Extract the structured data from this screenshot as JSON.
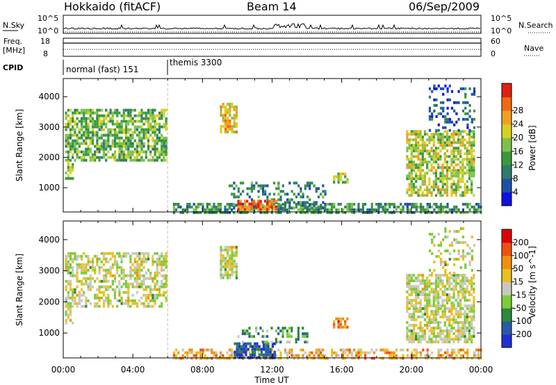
{
  "header": {
    "station": "Hokkaido (fitACF)",
    "beam": "Beam 14",
    "date": "06/Sep/2009"
  },
  "top_panels": {
    "nsky_label": "N.Sky",
    "nsky_ticks": [
      "10^5",
      "10^0"
    ],
    "nsearch_label": "N.Search",
    "freq_label": "Freq.",
    "freq_unit": "[MHz]",
    "freq_ticks": [
      "18",
      "8"
    ],
    "nave_ticks": [
      "60",
      "0"
    ],
    "nave_label": "Nave",
    "cpid_label": "CPID",
    "cpid_segments": [
      {
        "label": "normal (fast) 151",
        "start_hour": 0
      },
      {
        "label": "themis 3300",
        "start_hour": 6
      }
    ]
  },
  "colors": {
    "power_scale": [
      "#1010e0",
      "#1d4fa8",
      "#2f7a6a",
      "#3a9a3a",
      "#7cc24a",
      "#d8d020",
      "#f0a020",
      "#f06a10",
      "#e02010"
    ],
    "velocity_scale": [
      "#1f2fd8",
      "#2a5aa8",
      "#2c8a3a",
      "#7ccc3a",
      "#c8c8c0",
      "#e8c020",
      "#f09010",
      "#f05010",
      "#e00000"
    ]
  },
  "chart_data": [
    {
      "type": "heatmap",
      "name": "power",
      "title": "",
      "xlabel": "Time UT",
      "ylabel": "Slant Range [km]",
      "xlim": [
        0,
        24
      ],
      "ylim": [
        200,
        4600
      ],
      "x_ticks": [
        "00:00",
        "04:00",
        "08:00",
        "12:00",
        "16:00",
        "20:00",
        "00:00"
      ],
      "y_ticks": [
        1000,
        2000,
        3000,
        4000
      ],
      "colorbar": {
        "label": "Power [dB]",
        "range": [
          0,
          32
        ],
        "ticks": [
          "4",
          "8",
          "12",
          "16",
          "20",
          "24",
          "28"
        ]
      },
      "regions": [
        {
          "t0": 0.1,
          "t1": 5.9,
          "r0": 1900,
          "r1": 3600,
          "level": 0.45,
          "density": 0.7
        },
        {
          "t0": 0.1,
          "t1": 0.6,
          "r0": 1300,
          "r1": 1900,
          "level": 0.5,
          "density": 0.5
        },
        {
          "t0": 9.0,
          "t1": 9.9,
          "r0": 2800,
          "r1": 3800,
          "level": 0.65,
          "density": 0.8
        },
        {
          "t0": 6.3,
          "t1": 24.0,
          "r0": 200,
          "r1": 500,
          "level": 0.35,
          "density": 0.6
        },
        {
          "t0": 9.5,
          "t1": 15.0,
          "r0": 300,
          "r1": 1200,
          "level": 0.3,
          "density": 0.35
        },
        {
          "t0": 10.0,
          "t1": 12.2,
          "r0": 250,
          "r1": 600,
          "level": 0.85,
          "density": 0.8
        },
        {
          "t0": 15.5,
          "t1": 16.3,
          "r0": 1200,
          "r1": 1500,
          "level": 0.5,
          "density": 0.6
        },
        {
          "t0": 19.7,
          "t1": 23.6,
          "r0": 700,
          "r1": 2900,
          "level": 0.55,
          "density": 0.65
        },
        {
          "t0": 21.0,
          "t1": 23.6,
          "r0": 2900,
          "r1": 4400,
          "level": 0.2,
          "density": 0.25
        }
      ]
    },
    {
      "type": "heatmap",
      "name": "velocity",
      "title": "",
      "xlabel": "Time UT",
      "ylabel": "Slant Range [km]",
      "xlim": [
        0,
        24
      ],
      "ylim": [
        200,
        4600
      ],
      "x_ticks": [
        "00:00",
        "04:00",
        "08:00",
        "12:00",
        "16:00",
        "20:00",
        "00:00"
      ],
      "y_ticks": [
        1000,
        2000,
        3000,
        4000
      ],
      "colorbar": {
        "label": "Velocity [m s^-1]",
        "ticks": [
          "200",
          "100",
          "50",
          "15",
          "-15",
          "-50",
          "-100",
          "-200"
        ]
      },
      "regions": [
        {
          "t0": 0.1,
          "t1": 5.9,
          "r0": 1900,
          "r1": 3600,
          "level": 0.5,
          "density": 0.55
        },
        {
          "t0": 0.1,
          "t1": 0.6,
          "r0": 1300,
          "r1": 1900,
          "level": 0.5,
          "density": 0.4
        },
        {
          "t0": 9.0,
          "t1": 9.9,
          "r0": 2800,
          "r1": 3800,
          "level": 0.5,
          "density": 0.8
        },
        {
          "t0": 6.3,
          "t1": 24.0,
          "r0": 200,
          "r1": 500,
          "level": 0.65,
          "density": 0.55
        },
        {
          "t0": 9.8,
          "t1": 12.2,
          "r0": 250,
          "r1": 700,
          "level": 0.12,
          "density": 0.7
        },
        {
          "t0": 10.0,
          "t1": 14.0,
          "r0": 700,
          "r1": 1200,
          "level": 0.3,
          "density": 0.35
        },
        {
          "t0": 15.5,
          "t1": 16.3,
          "r0": 1200,
          "r1": 1500,
          "level": 0.75,
          "density": 0.6
        },
        {
          "t0": 19.7,
          "t1": 23.6,
          "r0": 700,
          "r1": 2900,
          "level": 0.5,
          "density": 0.7
        },
        {
          "t0": 21.0,
          "t1": 23.6,
          "r0": 2900,
          "r1": 4400,
          "level": 0.5,
          "density": 0.25
        }
      ]
    }
  ]
}
